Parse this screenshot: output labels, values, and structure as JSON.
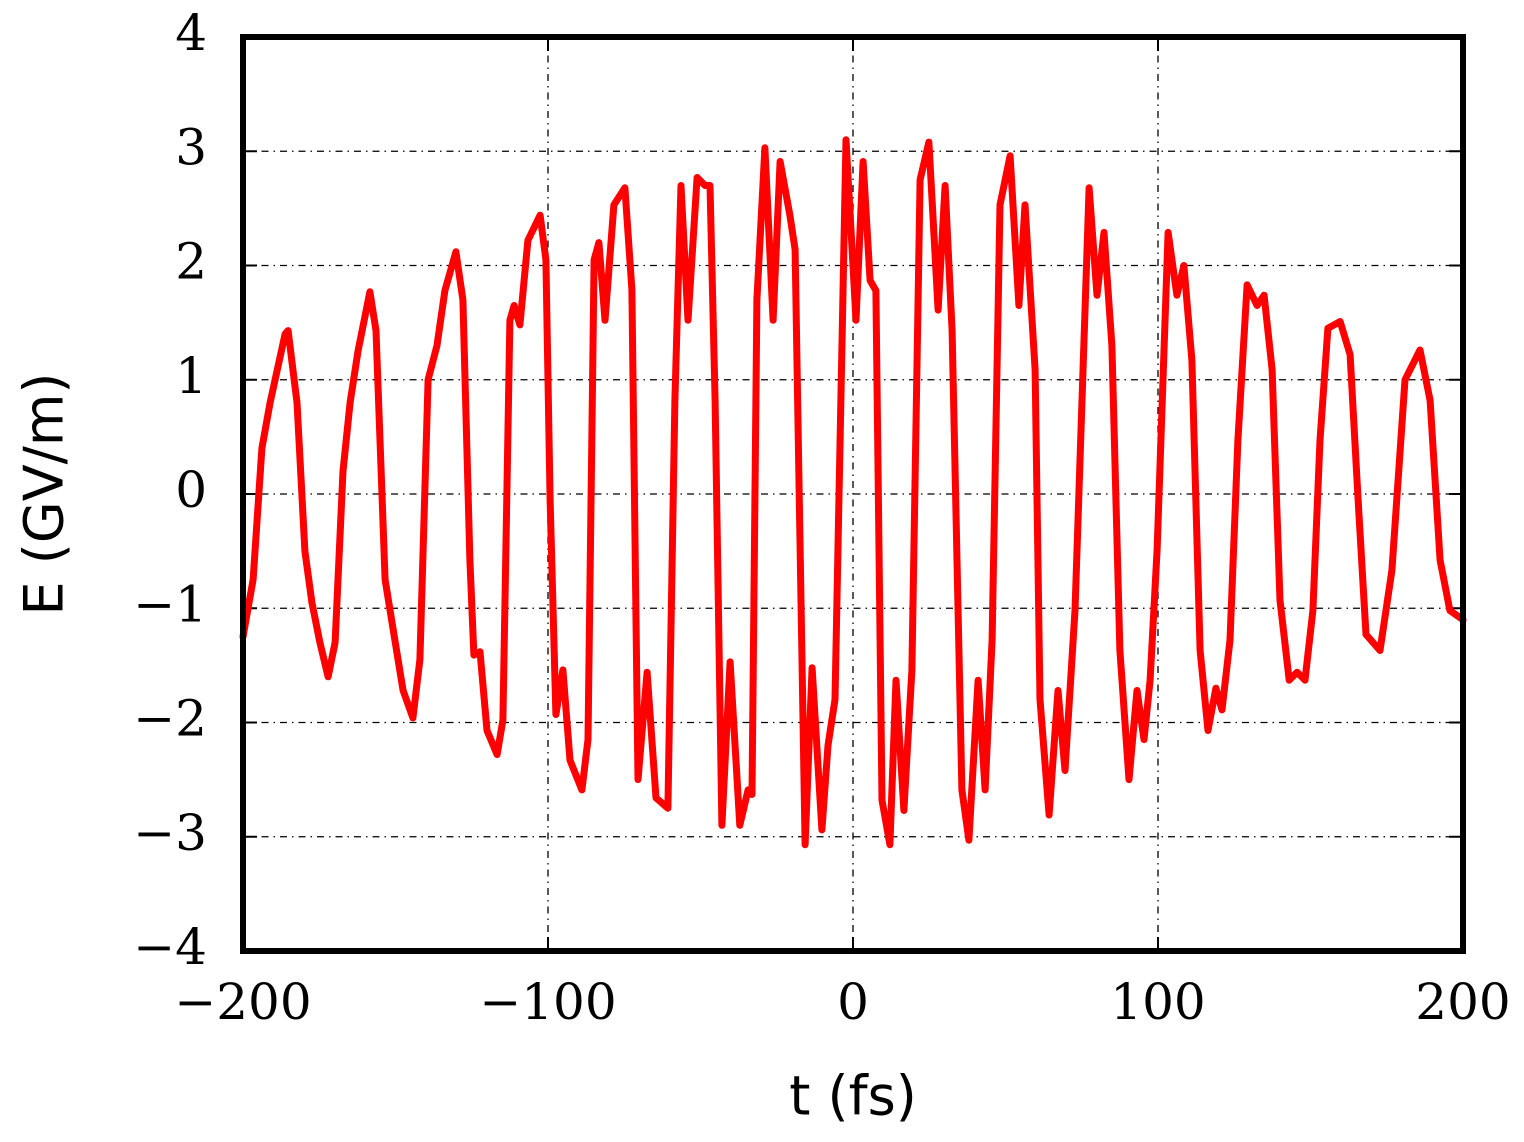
{
  "chart_data": {
    "type": "line",
    "xlabel": "t (fs)",
    "ylabel": "E (GV/m)",
    "xlim": [
      -200,
      200
    ],
    "ylim": [
      -4,
      4
    ],
    "xticks": [
      {
        "value": -200,
        "label": "−200"
      },
      {
        "value": -100,
        "label": "−100"
      },
      0,
      100,
      200
    ],
    "yticks": [
      {
        "value": -4,
        "label": "−4"
      },
      {
        "value": -3,
        "label": "−3"
      },
      {
        "value": -2,
        "label": "−2"
      },
      {
        "value": -1,
        "label": "−1"
      },
      0,
      1,
      2,
      3,
      4
    ],
    "grid": true,
    "series": [
      {
        "color": "#ff0000",
        "x": [
          -200,
          -196.7,
          -193.8,
          -191.1,
          -186.2,
          -185.2,
          -182.3,
          -179.7,
          -177.4,
          -174.8,
          -172.1,
          -169.8,
          -167.2,
          -164.9,
          -162.3,
          -158.4,
          -156.4,
          -153.4,
          -150.2,
          -147.5,
          -144.3,
          -142,
          -139.3,
          -136.4,
          -133.8,
          -130.2,
          -127.9,
          -125.6,
          -124.3,
          -122.3,
          -120,
          -116.7,
          -114.8,
          -112.5,
          -111.1,
          -109.2,
          -106.6,
          -102.6,
          -100.7,
          -99.3,
          -97.4,
          -95.1,
          -92.8,
          -88.9,
          -86.9,
          -84.9,
          -83.3,
          -81.3,
          -78.4,
          -74.8,
          -72.5,
          -70.5,
          -67.5,
          -64.6,
          -60.7,
          -58.4,
          -56.4,
          -54.1,
          -51.1,
          -48.5,
          -46.9,
          -45.2,
          -43,
          -40.3,
          -37.1,
          -34.4,
          -33.1,
          -31.5,
          -28.9,
          -26.2,
          -23.9,
          -20.7,
          -19,
          -15.7,
          -13.4,
          -10.2,
          -8.2,
          -5.9,
          -2.3,
          -0.3,
          1,
          3.3,
          5.6,
          7.5,
          9.5,
          12.1,
          14.1,
          16.7,
          19.3,
          22,
          24.9,
          27.9,
          30.2,
          32.5,
          35.7,
          38,
          41,
          43.3,
          45.6,
          48.2,
          51.5,
          54.4,
          56.4,
          59.7,
          61.3,
          64.3,
          67.2,
          69.5,
          72.8,
          77.4,
          80,
          82.3,
          84.9,
          87.5,
          90.5,
          93.1,
          95.4,
          97.4,
          99.7,
          103.3,
          106.2,
          108.5,
          111.1,
          113.8,
          116.4,
          119,
          121,
          123.6,
          126.2,
          129.2,
          132.5,
          134.8,
          137.4,
          140,
          143,
          145.6,
          148.2,
          150.8,
          153.1,
          155.7,
          159.7,
          163,
          165.6,
          168.2,
          172.8,
          176.7,
          181,
          185.9,
          189.2,
          192.5,
          195.7,
          200
        ],
        "values": [
          -1.25,
          -0.75,
          0.4,
          0.8,
          1.4,
          1.43,
          0.8,
          -0.5,
          -0.95,
          -1.3,
          -1.6,
          -1.3,
          0.2,
          0.8,
          1.25,
          1.77,
          1.43,
          -0.75,
          -1.28,
          -1.72,
          -1.96,
          -1.45,
          1.0,
          1.3,
          1.78,
          2.12,
          1.7,
          -0.58,
          -1.41,
          -1.38,
          -2.07,
          -2.28,
          -1.98,
          1.52,
          1.65,
          1.48,
          2.22,
          2.44,
          2.05,
          -0.05,
          -1.93,
          -1.54,
          -2.33,
          -2.59,
          -2.15,
          2.05,
          2.2,
          1.52,
          2.53,
          2.68,
          1.79,
          -2.5,
          -1.56,
          -2.66,
          -2.75,
          0.82,
          2.7,
          1.52,
          2.77,
          2.7,
          2.7,
          0.82,
          -2.9,
          -1.47,
          -2.9,
          -2.59,
          -2.63,
          1.7,
          3.03,
          1.52,
          2.91,
          2.44,
          2.14,
          -3.07,
          -1.52,
          -2.94,
          -2.2,
          -1.8,
          3.1,
          2.14,
          1.52,
          2.91,
          1.87,
          1.78,
          -2.68,
          -3.07,
          -1.63,
          -2.77,
          -1.54,
          2.75,
          3.08,
          1.61,
          2.7,
          1.43,
          -2.59,
          -3.03,
          -1.63,
          -2.59,
          -1.28,
          2.53,
          2.96,
          1.65,
          2.53,
          1.09,
          -1.8,
          -2.81,
          -1.72,
          -2.42,
          -1.02,
          2.68,
          1.74,
          2.29,
          1.3,
          -1.37,
          -2.5,
          -1.72,
          -2.15,
          -1.63,
          -0.49,
          2.29,
          1.74,
          2.0,
          1.17,
          -1.37,
          -2.07,
          -1.7,
          -1.89,
          -1.28,
          0.47,
          1.83,
          1.65,
          1.74,
          1.09,
          -0.93,
          -1.63,
          -1.56,
          -1.63,
          -1.02,
          0.47,
          1.45,
          1.51,
          1.22,
          -0.05,
          -1.23,
          -1.37,
          -0.67,
          1.0,
          1.26,
          0.82,
          -0.58,
          -1.02,
          -1.1
        ]
      }
    ]
  }
}
